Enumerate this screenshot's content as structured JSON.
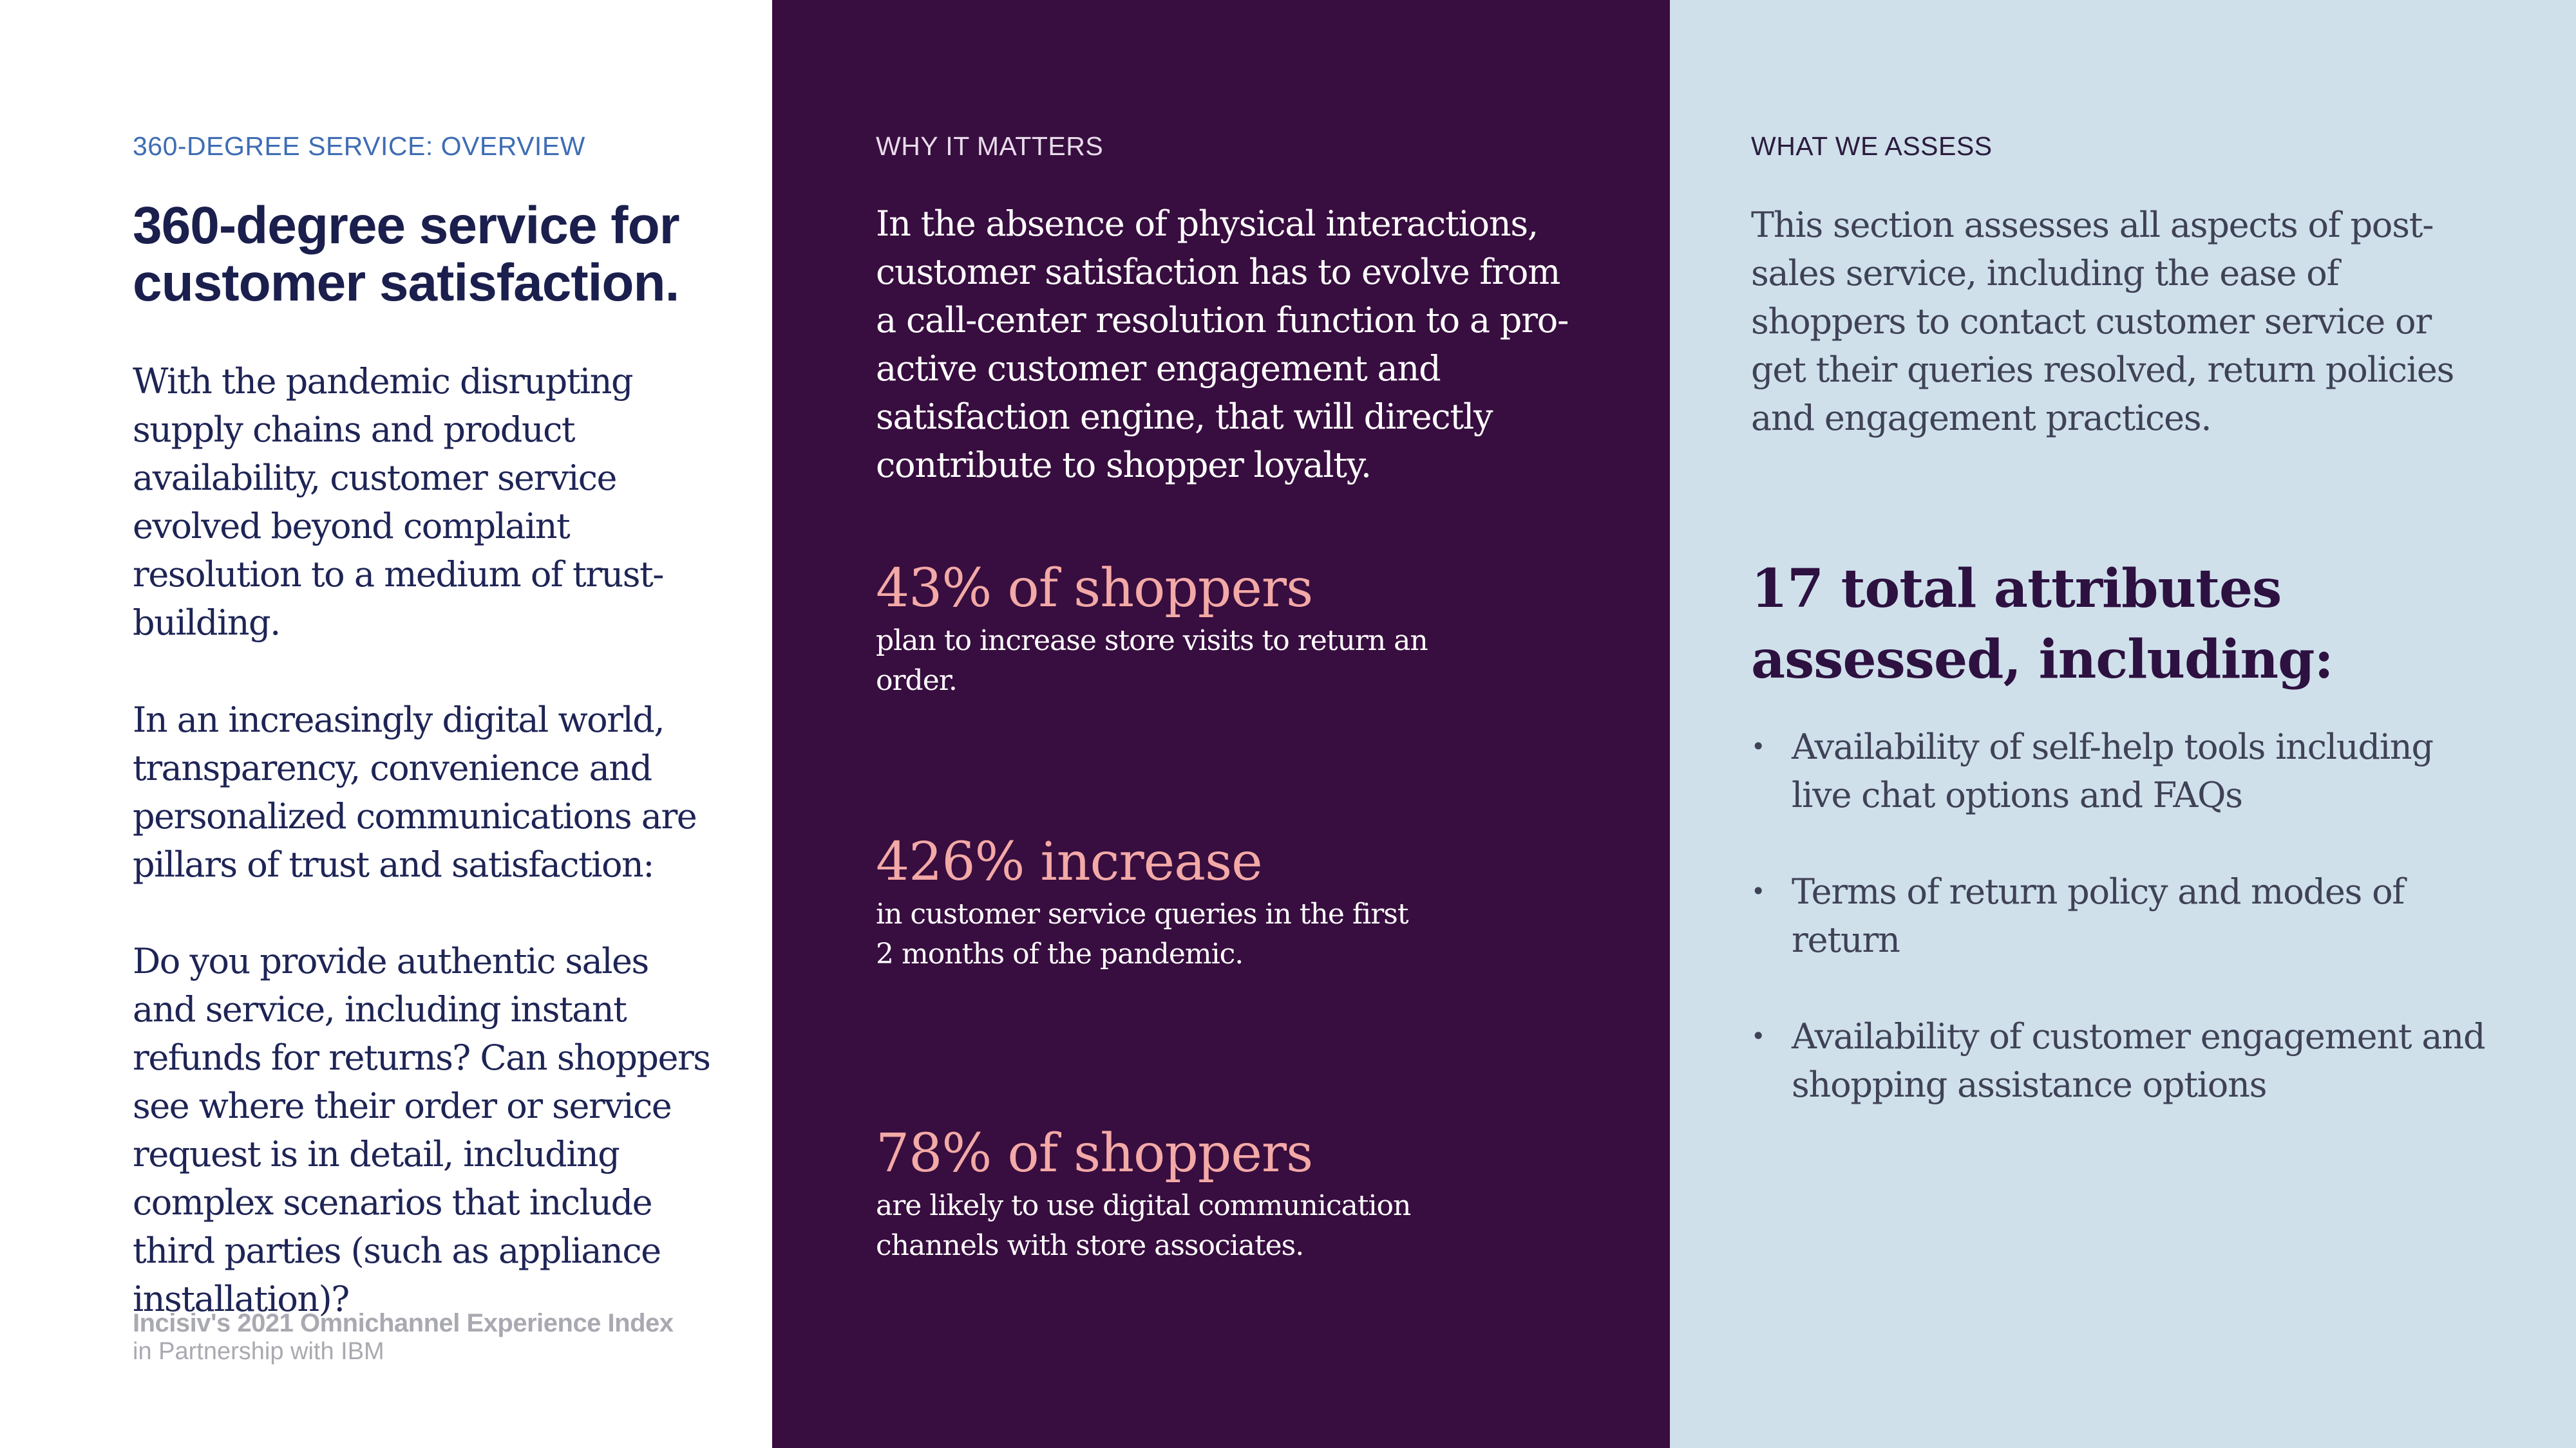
{
  "overview": {
    "eyebrow": "360-DEGREE SERVICE: OVERVIEW",
    "title": "360-degree service for customer satisfaction.",
    "paragraphs": [
      "With the pandemic disrupting supply chains and product availability, customer service evolved beyond complaint resolution to a medium of trust-building.",
      "In an increasingly digital world, transparency, convenience and personalized communications are pillars of trust and satisfaction:",
      "Do you provide authentic sales and service, including instant refunds for returns? Can shoppers see where their order or service request is in detail, including complex scenarios that include third parties (such as appliance installation)?"
    ],
    "footer": {
      "line1": "Incisiv's 2021 Omnichannel Experience Index",
      "line2": "in Partnership with IBM"
    }
  },
  "why_it_matters": {
    "eyebrow": "WHY IT MATTERS",
    "intro": "In the absence of physical interactions, customer satisfaction has to evolve from a call-center resolution function to a pro-active customer engagement and satisfaction engine, that will directly contribute to shopper loyalty.",
    "stats": [
      {
        "value": "43% of shoppers",
        "description": "plan to increase store visits to return an order."
      },
      {
        "value": "426% increase",
        "description": "in customer service queries in the first 2 months of the pandemic."
      },
      {
        "value": "78% of shoppers",
        "description": "are likely to use digital communication channels with store associates."
      }
    ]
  },
  "what_we_assess": {
    "eyebrow": "WHAT WE ASSESS",
    "intro": "This section assesses all aspects of post-sales service, including the ease of shoppers to contact customer service or get their queries resolved, return policies and engagement practices.",
    "heading": "17 total attributes assessed, including:",
    "bullets": [
      "Availability of self-help tools including live chat options and FAQs",
      "Terms of return policy and modes of return",
      "Availability of customer engagement and shopping assistance options"
    ],
    "bullet_glyph": "•"
  },
  "colors": {
    "mid_background": "#380d3f",
    "right_background": "#cfe0eb",
    "stat_accent": "#f3a9a6",
    "title_navy": "#1b1f4d",
    "eyebrow_blue": "#3f6db4"
  }
}
